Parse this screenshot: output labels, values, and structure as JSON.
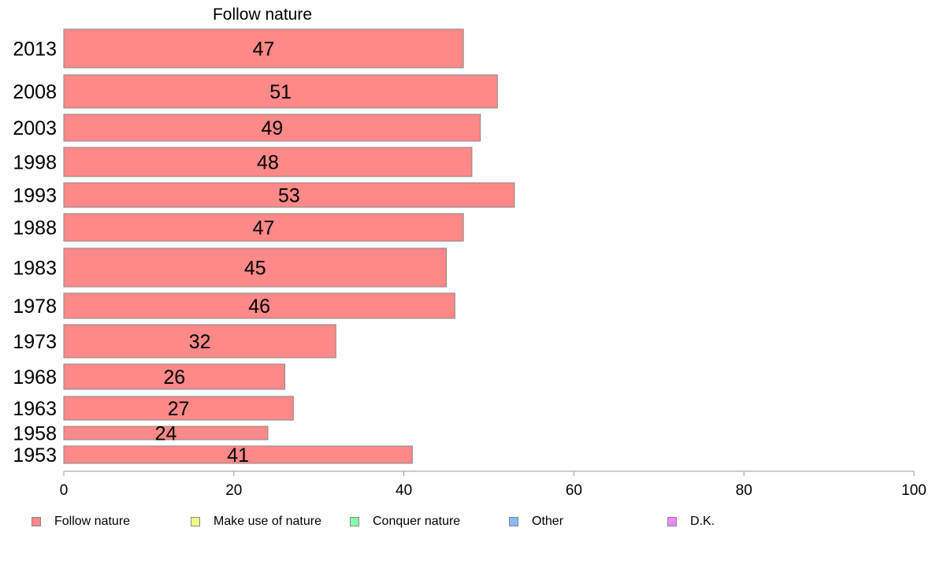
{
  "chart_data": {
    "type": "bar",
    "orientation": "horizontal",
    "title": "Follow nature",
    "categories": [
      "2013",
      "2008",
      "2003",
      "1998",
      "1993",
      "1988",
      "1983",
      "1978",
      "1973",
      "1968",
      "1963",
      "1958",
      "1953"
    ],
    "series": [
      {
        "name": "Follow nature",
        "values": [
          47,
          51,
          49,
          48,
          53,
          47,
          45,
          46,
          32,
          26,
          27,
          24,
          41
        ],
        "color": "#ff8888"
      }
    ],
    "xlim": [
      0,
      100
    ],
    "xticks": [
      "0",
      "20",
      "40",
      "60",
      "80",
      "100"
    ],
    "grid": false,
    "legend_position": "bottom",
    "legend": [
      {
        "label": "Follow nature",
        "color": "#ff8888"
      },
      {
        "label": "Make use of nature",
        "color": "#f0ff88"
      },
      {
        "label": "Conquer nature",
        "color": "#88ffaa"
      },
      {
        "label": "Other",
        "color": "#88bbff"
      },
      {
        "label": "D.K.",
        "color": "#ee88ff"
      }
    ]
  }
}
